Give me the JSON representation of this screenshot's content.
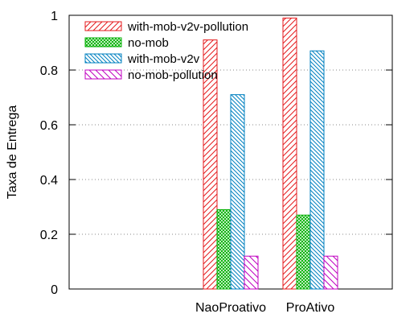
{
  "chart_data": {
    "type": "bar",
    "title": "",
    "xlabel": "",
    "ylabel": "Taxa de Entrega",
    "ylim": [
      0,
      1
    ],
    "yticks": [
      "0",
      "0.2",
      "0.4",
      "0.6",
      "0.8",
      "1"
    ],
    "grid": "horizontal dotted",
    "legend_position": "top-left",
    "categories": [
      "NaoProativo",
      "ProAtivo"
    ],
    "series": [
      {
        "name": "with-mob-v2v-pollution",
        "values": [
          0.91,
          0.99
        ],
        "color": "#e41a1c",
        "pattern": "diagonal-hatch"
      },
      {
        "name": "no-mob",
        "values": [
          0.29,
          0.27
        ],
        "color": "#00b000",
        "pattern": "crosshatch"
      },
      {
        "name": "with-mob-v2v",
        "values": [
          0.71,
          0.87
        ],
        "color": "#0080c0",
        "pattern": "back-diagonal-hatch"
      },
      {
        "name": "no-mob-pollution",
        "values": [
          0.12,
          0.12
        ],
        "color": "#c000c0",
        "pattern": "back-diagonal-hatch-sparse"
      }
    ]
  }
}
